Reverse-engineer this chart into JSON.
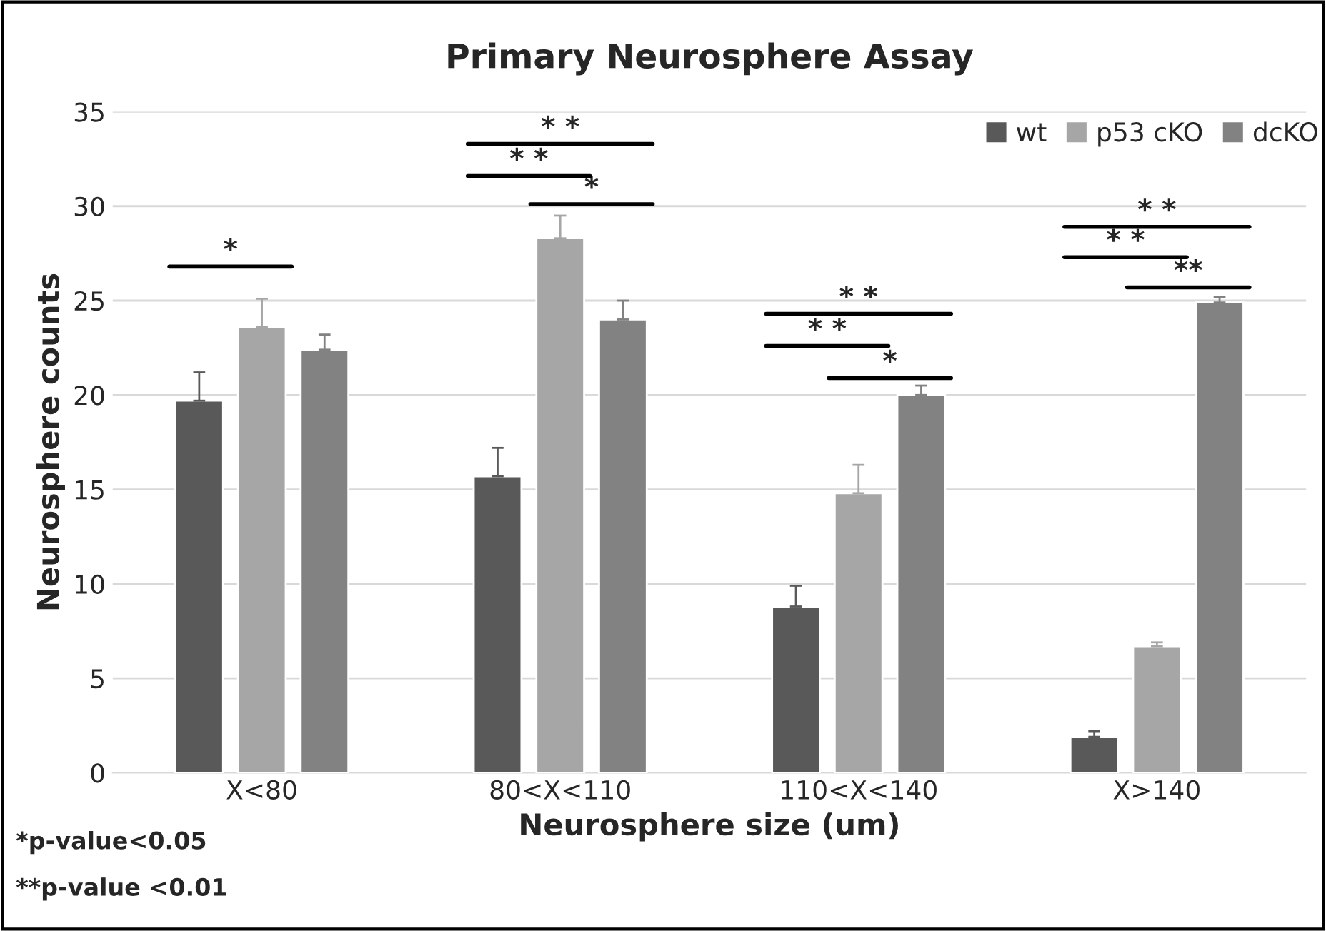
{
  "chart_data": {
    "type": "bar",
    "title": "Primary Neurosphere Assay",
    "xlabel": "Neurosphere size (um)",
    "ylabel": "Neurosphere counts",
    "categories": [
      "X<80",
      "80<X<110",
      "110<X<140",
      "X>140"
    ],
    "series": [
      {
        "name": "wt",
        "color": "#595959",
        "values": [
          19.7,
          15.7,
          8.8,
          1.9
        ],
        "errors": [
          [
            19.7,
            21.2
          ],
          [
            15.7,
            17.2
          ],
          [
            8.8,
            9.9
          ],
          [
            1.9,
            2.2
          ]
        ]
      },
      {
        "name": "p53 cKO",
        "color": "#a6a6a6",
        "values": [
          23.6,
          28.3,
          14.8,
          6.7
        ],
        "errors": [
          [
            23.6,
            25.1
          ],
          [
            28.3,
            29.5
          ],
          [
            14.8,
            16.3
          ],
          [
            6.7,
            6.9
          ]
        ]
      },
      {
        "name": "dcKO",
        "color": "#828282",
        "values": [
          22.4,
          24.0,
          20.0,
          24.9
        ],
        "errors": [
          [
            22.4,
            23.2
          ],
          [
            24.0,
            25.0
          ],
          [
            20.0,
            20.5
          ],
          [
            24.9,
            25.2
          ]
        ]
      }
    ],
    "ylim": [
      0,
      35
    ],
    "yticks": [
      0,
      5,
      10,
      15,
      20,
      25,
      30,
      35
    ],
    "grid": "y",
    "legend": "top right",
    "annotations": [
      "*",
      "* *",
      "* *",
      "*",
      "* *",
      "* *",
      "*",
      "* *",
      "* *",
      "**",
      "*p-value<0.05",
      "**p-value <0.01"
    ]
  }
}
